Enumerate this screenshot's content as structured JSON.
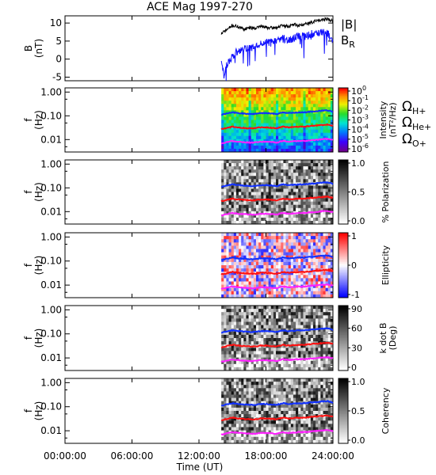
{
  "title": "ACE Mag 1997-270",
  "legend": {
    "b_total": "|B|",
    "b_r_base": "B",
    "b_r_sub": "R",
    "omega": "Ω",
    "h_sub": "H+",
    "he_sub": "He+",
    "o_sub": "O+"
  },
  "colors": {
    "b_total": "#000000",
    "b_r": "#1010ff",
    "cyclotron_h": "#1030ff",
    "cyclotron_he": "#ff1010",
    "cyclotron_o": "#ff20ff"
  },
  "chart_data": [
    {
      "type": "line",
      "title": "ACE Mag 1997-270",
      "ylabel_line1": "B",
      "ylabel_line2": "(nT)",
      "ylim": [
        -6,
        12
      ],
      "yticks": [
        -5,
        0,
        5,
        10
      ],
      "ytick_labels": [
        "-5",
        "0",
        "5",
        "10"
      ],
      "x_range_hours": [
        0,
        24
      ],
      "data_start_hour": 14.0,
      "series": [
        {
          "name": "|B|",
          "x": [
            14.0,
            14.5,
            15.0,
            15.5,
            16.0,
            16.5,
            17.0,
            17.5,
            18.0,
            18.5,
            19.0,
            19.5,
            20.0,
            20.5,
            21.0,
            21.5,
            22.0,
            22.5,
            23.0,
            23.5,
            24.0
          ],
          "values": [
            7.0,
            8.2,
            9.3,
            9.0,
            8.3,
            8.8,
            8.6,
            9.1,
            8.8,
            8.6,
            8.8,
            9.3,
            9.0,
            9.6,
            9.3,
            9.7,
            10.1,
            10.6,
            11.0,
            11.2,
            10.5
          ]
        },
        {
          "name": "B_R",
          "x": [
            14.0,
            14.25,
            14.5,
            15.0,
            15.5,
            16.0,
            16.5,
            17.0,
            17.5,
            18.0,
            18.5,
            19.0,
            19.5,
            20.0,
            20.5,
            21.0,
            21.5,
            22.0,
            22.5,
            23.0,
            23.5,
            24.0
          ],
          "values": [
            0.0,
            -5.0,
            -1.5,
            0.8,
            2.3,
            2.9,
            3.0,
            3.6,
            4.3,
            4.6,
            4.5,
            4.9,
            5.6,
            5.2,
            5.9,
            6.6,
            6.3,
            6.9,
            7.2,
            7.4,
            7.1,
            5.5
          ]
        }
      ]
    },
    {
      "type": "heatmap",
      "ylabel_line1": "f",
      "ylabel_line2": "(Hz)",
      "ylim": [
        0.003,
        1.5
      ],
      "yscale": "log",
      "yticks": [
        1.0,
        0.1,
        0.01
      ],
      "ytick_labels": [
        "1.00",
        "0.10",
        "0.01"
      ],
      "data_start_hour": 14.0,
      "colorbar": {
        "label_line1": "Intensity",
        "label_line2": "(nT²/Hz)",
        "tick_base": "10",
        "tick_exponents": [
          "0",
          "-1",
          "-2",
          "-3",
          "-4",
          "-5",
          "-6"
        ],
        "palette": "rainbow"
      }
    },
    {
      "type": "heatmap",
      "ylabel_line1": "f",
      "ylabel_line2": "(Hz)",
      "ylim": [
        0.003,
        1.5
      ],
      "yscale": "log",
      "yticks": [
        1.0,
        0.1,
        0.01
      ],
      "ytick_labels": [
        "1.00",
        "0.10",
        "0.01"
      ],
      "data_start_hour": 14.0,
      "colorbar": {
        "label_line1": "% Polarization",
        "label_line2": "",
        "ticks": [
          "1.0",
          "0.5",
          "0.0"
        ],
        "palette": "gray"
      }
    },
    {
      "type": "heatmap",
      "ylabel_line1": "f",
      "ylabel_line2": "(Hz)",
      "ylim": [
        0.003,
        1.5
      ],
      "yscale": "log",
      "yticks": [
        1.0,
        0.1,
        0.01
      ],
      "ytick_labels": [
        "1.00",
        "0.10",
        "0.01"
      ],
      "data_start_hour": 14.0,
      "colorbar": {
        "label_line1": "Ellipticity",
        "label_line2": "",
        "ticks": [
          "1",
          "0",
          "-1"
        ],
        "palette": "bwr"
      }
    },
    {
      "type": "heatmap",
      "ylabel_line1": "f",
      "ylabel_line2": "(Hz)",
      "ylim": [
        0.003,
        1.5
      ],
      "yscale": "log",
      "yticks": [
        1.0,
        0.1,
        0.01
      ],
      "ytick_labels": [
        "1.00",
        "0.10",
        "0.01"
      ],
      "data_start_hour": 14.0,
      "colorbar": {
        "label_line1": "k dot B",
        "label_line2": "(Deg)",
        "ticks": [
          "90",
          "60",
          "30",
          "0"
        ],
        "palette": "gray"
      }
    },
    {
      "type": "heatmap",
      "ylabel_line1": "f",
      "ylabel_line2": "(Hz)",
      "ylim": [
        0.003,
        1.5
      ],
      "yscale": "log",
      "yticks": [
        1.0,
        0.1,
        0.01
      ],
      "ytick_labels": [
        "1.00",
        "0.10",
        "0.01"
      ],
      "data_start_hour": 14.0,
      "colorbar": {
        "label_line1": "Coherency",
        "label_line2": "",
        "ticks": [
          "1.0",
          "0.5",
          "0.0"
        ],
        "palette": "gray"
      }
    }
  ],
  "cyclotron": {
    "x": [
      14.0,
      14.5,
      15.0,
      15.5,
      16.0,
      16.5,
      17.0,
      17.5,
      18.0,
      18.5,
      19.0,
      19.5,
      20.0,
      20.5,
      21.0,
      21.5,
      22.0,
      22.5,
      23.0,
      23.5,
      24.0
    ],
    "h": [
      0.11,
      0.125,
      0.14,
      0.13,
      0.125,
      0.12,
      0.12,
      0.13,
      0.13,
      0.125,
      0.12,
      0.14,
      0.13,
      0.135,
      0.14,
      0.14,
      0.15,
      0.155,
      0.165,
      0.17,
      0.15
    ],
    "he": [
      0.0275,
      0.031,
      0.035,
      0.0325,
      0.031,
      0.03,
      0.03,
      0.0325,
      0.0325,
      0.031,
      0.03,
      0.035,
      0.0325,
      0.034,
      0.035,
      0.035,
      0.0375,
      0.039,
      0.041,
      0.0425,
      0.0375
    ],
    "o": [
      0.0069,
      0.0078,
      0.0088,
      0.0081,
      0.0078,
      0.0075,
      0.0075,
      0.0081,
      0.0081,
      0.0078,
      0.0075,
      0.0088,
      0.0081,
      0.0085,
      0.0088,
      0.0088,
      0.0094,
      0.0097,
      0.0103,
      0.0106,
      0.0094
    ]
  },
  "xaxis": {
    "range_hours": [
      0,
      24
    ],
    "tick_hours": [
      0,
      6,
      12,
      18,
      24
    ],
    "tick_labels": [
      "00:00:00",
      "06:00:00",
      "12:00:00",
      "18:00:00",
      "24:00:00"
    ],
    "label": "Time (UT)"
  }
}
